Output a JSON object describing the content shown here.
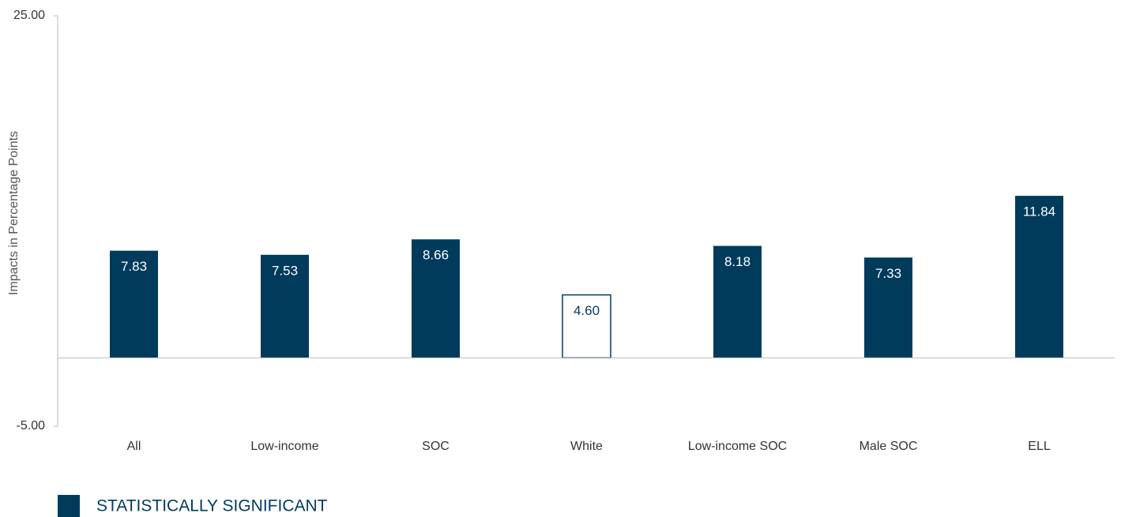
{
  "chart_data": {
    "type": "bar",
    "y_label": "Impacts in Percentage Points",
    "categories": [
      "All",
      "Low-income",
      "SOC",
      "White",
      "Low-income SOC",
      "Male SOC",
      "ELL"
    ],
    "values": [
      7.83,
      7.53,
      8.66,
      4.6,
      8.18,
      7.33,
      11.84
    ],
    "value_labels": [
      "7.83",
      "7.53",
      "8.66",
      "4.60",
      "8.18",
      "7.33",
      "11.84"
    ],
    "significant": [
      true,
      true,
      true,
      false,
      true,
      true,
      true
    ],
    "color": "#003b5c",
    "ylim": [
      -5,
      25
    ],
    "yticks": [
      {
        "value": -5,
        "label": "-5.00"
      },
      {
        "value": 25,
        "label": "25.00"
      }
    ],
    "legend": "STATISTICALLY SIGNIFICANT"
  }
}
